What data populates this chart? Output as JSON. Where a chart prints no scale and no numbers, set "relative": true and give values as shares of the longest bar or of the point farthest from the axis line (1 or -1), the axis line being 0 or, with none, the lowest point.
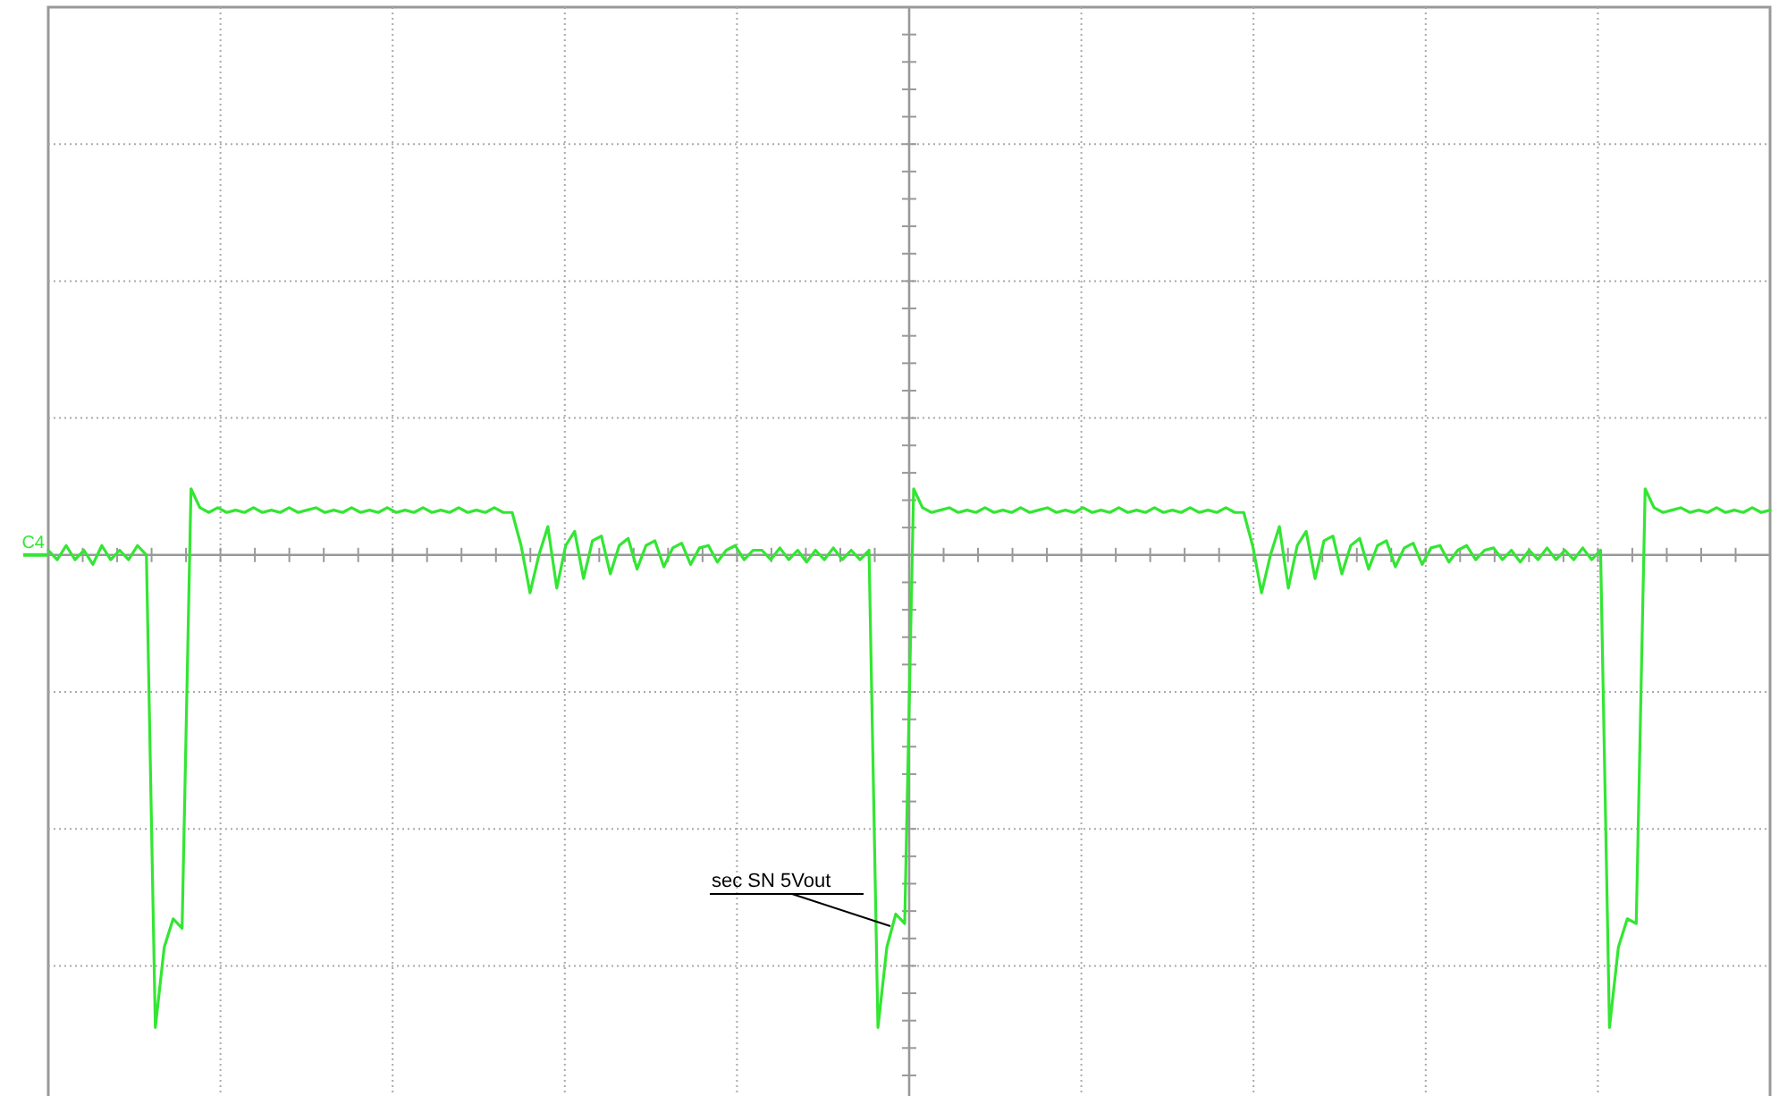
{
  "chart_data": {
    "type": "line",
    "relative": true,
    "grid": true,
    "marker": "none",
    "line_style": "solid",
    "categories": [
      null,
      null,
      null,
      null,
      null,
      null,
      null,
      null,
      null,
      null,
      null,
      null,
      null,
      null,
      null,
      null,
      null,
      null,
      null,
      null,
      null,
      null,
      null,
      null,
      null,
      null,
      null,
      null,
      null,
      null,
      null,
      null,
      null,
      null,
      null,
      null,
      null,
      null,
      null,
      null,
      null,
      null,
      null,
      null,
      null,
      null,
      null,
      null,
      null,
      null,
      null,
      null,
      null,
      null,
      null,
      null,
      null,
      null,
      null,
      null,
      null,
      null,
      null,
      null,
      null,
      null,
      null,
      null,
      null,
      null,
      null,
      null,
      null,
      null,
      null,
      null,
      null,
      null,
      null,
      null,
      null,
      null,
      null,
      null,
      null,
      null,
      null,
      null,
      null,
      null,
      null,
      null,
      null,
      null,
      null,
      null,
      null,
      null,
      null,
      null,
      null,
      null,
      null,
      null,
      null,
      null,
      null,
      null,
      null,
      null,
      null,
      null,
      null,
      null,
      null,
      null,
      null,
      null,
      null,
      null,
      null,
      null,
      null,
      null,
      null,
      null,
      null,
      null,
      null,
      null,
      null,
      null,
      null,
      null,
      null,
      null,
      null,
      null,
      null,
      null,
      null,
      null,
      null,
      null,
      null,
      null,
      null,
      null,
      null,
      null,
      null,
      null,
      null,
      null,
      null,
      null,
      null,
      null,
      null,
      null,
      null,
      null,
      null,
      null,
      null,
      null,
      null,
      null,
      null,
      null,
      null,
      null,
      null,
      null,
      null,
      null,
      null,
      null,
      null,
      null,
      null,
      null,
      null,
      null,
      null,
      null,
      null,
      null,
      null,
      null,
      null,
      null,
      null,
      null
    ],
    "series": [
      {
        "name": "C4",
        "color": "#33e633",
        "values": [
          0.01,
          -0.01,
          0.02,
          -0.01,
          0.01,
          -0.02,
          0.02,
          -0.01,
          0.01,
          -0.01,
          0.02,
          0.0,
          -1,
          -0.83,
          -0.77,
          -0.79,
          0.14,
          0.1,
          0.09,
          0.1,
          0.09,
          0.095,
          0.09,
          0.1,
          0.09,
          0.095,
          0.09,
          0.1,
          0.09,
          0.095,
          0.1,
          0.09,
          0.095,
          0.09,
          0.1,
          0.09,
          0.095,
          0.09,
          0.1,
          0.09,
          0.095,
          0.09,
          0.1,
          0.09,
          0.095,
          0.09,
          0.1,
          0.09,
          0.095,
          0.09,
          0.1,
          0.09,
          0.09,
          0.02,
          -0.08,
          0.0,
          0.06,
          -0.07,
          0.02,
          0.05,
          -0.05,
          0.03,
          0.04,
          -0.04,
          0.02,
          0.035,
          -0.03,
          0.02,
          0.03,
          -0.025,
          0.015,
          0.025,
          -0.02,
          0.015,
          0.02,
          -0.015,
          0.01,
          0.02,
          -0.01,
          0.01,
          0.01,
          -0.01,
          0.015,
          -0.01,
          0.01,
          -0.015,
          0.01,
          -0.01,
          0.015,
          -0.01,
          0.01,
          -0.01,
          0.01,
          -1,
          -0.83,
          -0.76,
          -0.78,
          0.14,
          0.1,
          0.09,
          0.095,
          0.1,
          0.09,
          0.095,
          0.09,
          0.1,
          0.09,
          0.095,
          0.09,
          0.1,
          0.09,
          0.095,
          0.1,
          0.09,
          0.095,
          0.09,
          0.1,
          0.09,
          0.095,
          0.09,
          0.1,
          0.09,
          0.095,
          0.09,
          0.1,
          0.09,
          0.095,
          0.09,
          0.1,
          0.09,
          0.095,
          0.09,
          0.1,
          0.09,
          0.09,
          0.02,
          -0.08,
          0.0,
          0.06,
          -0.07,
          0.02,
          0.05,
          -0.05,
          0.03,
          0.04,
          -0.04,
          0.02,
          0.035,
          -0.03,
          0.02,
          0.03,
          -0.025,
          0.015,
          0.025,
          -0.02,
          0.015,
          0.02,
          -0.015,
          0.01,
          0.02,
          -0.01,
          0.01,
          0.015,
          -0.01,
          0.01,
          -0.015,
          0.01,
          -0.01,
          0.015,
          -0.01,
          0.01,
          -0.01,
          0.015,
          -0.01,
          0.01,
          -1,
          -0.83,
          -0.77,
          -0.78,
          0.14,
          0.1,
          0.09,
          0.095,
          0.1,
          0.09,
          0.095,
          0.09,
          0.1,
          0.09,
          0.095,
          0.09,
          0.1,
          0.09,
          0.095
        ]
      }
    ],
    "annotations": [
      "sec SN 5Vout"
    ]
  }
}
